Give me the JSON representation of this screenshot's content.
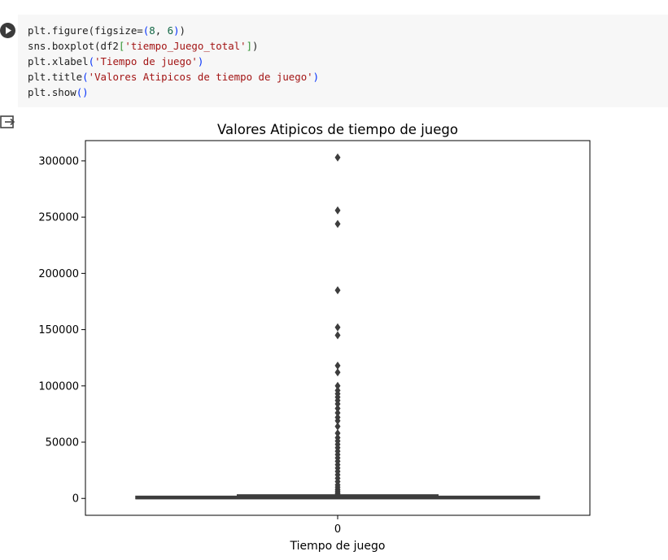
{
  "code_cell": {
    "lines": [
      [
        {
          "t": "plt.figure(figsize"
        },
        {
          "t": "="
        },
        {
          "t": "(",
          "c": "br1"
        },
        {
          "t": "8",
          "c": "num"
        },
        {
          "t": ", "
        },
        {
          "t": "6",
          "c": "num"
        },
        {
          "t": ")",
          "c": "br1"
        },
        {
          "t": ")"
        }
      ],
      [
        {
          "t": "sns.boxplot(df2"
        },
        {
          "t": "[",
          "c": "br2"
        },
        {
          "t": "'tiempo_Juego_total'",
          "c": "str"
        },
        {
          "t": "]",
          "c": "br2"
        },
        {
          "t": ")"
        }
      ],
      [
        {
          "t": "plt.xlabel"
        },
        {
          "t": "(",
          "c": "br1"
        },
        {
          "t": "'Tiempo de juego'",
          "c": "str"
        },
        {
          "t": ")",
          "c": "br1"
        }
      ],
      [
        {
          "t": "plt.title"
        },
        {
          "t": "(",
          "c": "br1"
        },
        {
          "t": "'Valores Atipicos de tiempo de juego'",
          "c": "str"
        },
        {
          "t": ")",
          "c": "br1"
        }
      ],
      [
        {
          "t": "plt.show"
        },
        {
          "t": "()",
          "c": "br1"
        }
      ]
    ],
    "colors": {
      "background": "#f7f7f7",
      "text": "#212121",
      "string": "#a31515",
      "number": "#116644",
      "bracket_outer": "#0431fa",
      "bracket_inner": "#319331"
    }
  },
  "icons": {
    "run": "play-icon",
    "output": "output-toggle-icon"
  },
  "chart_data": {
    "type": "box",
    "title": "Valores Atipicos de tiempo de juego",
    "xlabel": "Tiempo de juego",
    "ylabel": "",
    "categories": [
      "0"
    ],
    "ylim": [
      -15000,
      318000
    ],
    "yticks": [
      0,
      50000,
      100000,
      150000,
      200000,
      250000,
      300000
    ],
    "ytick_labels": [
      "0",
      "50000",
      "100000",
      "150000",
      "200000",
      "250000",
      "300000"
    ],
    "box": {
      "whisker_low": 0,
      "q1": 0,
      "median": 0,
      "q3": 1200,
      "whisker_high": 3000
    },
    "outliers": [
      303000,
      256000,
      244000,
      185000,
      152000,
      145000,
      118000,
      112000,
      100000,
      96000,
      93000,
      90000,
      87000,
      84000,
      80000,
      76000,
      72000,
      69000,
      64000,
      58000,
      54000,
      51000,
      48000,
      45000,
      42000,
      39000,
      36000,
      33000,
      30000,
      27000,
      24000,
      21000,
      18000,
      15000,
      12000,
      10000,
      8000,
      6500,
      5000,
      4000
    ],
    "grid": false,
    "colors": {
      "box": "#3d3d3d",
      "axes": "#000000"
    }
  }
}
